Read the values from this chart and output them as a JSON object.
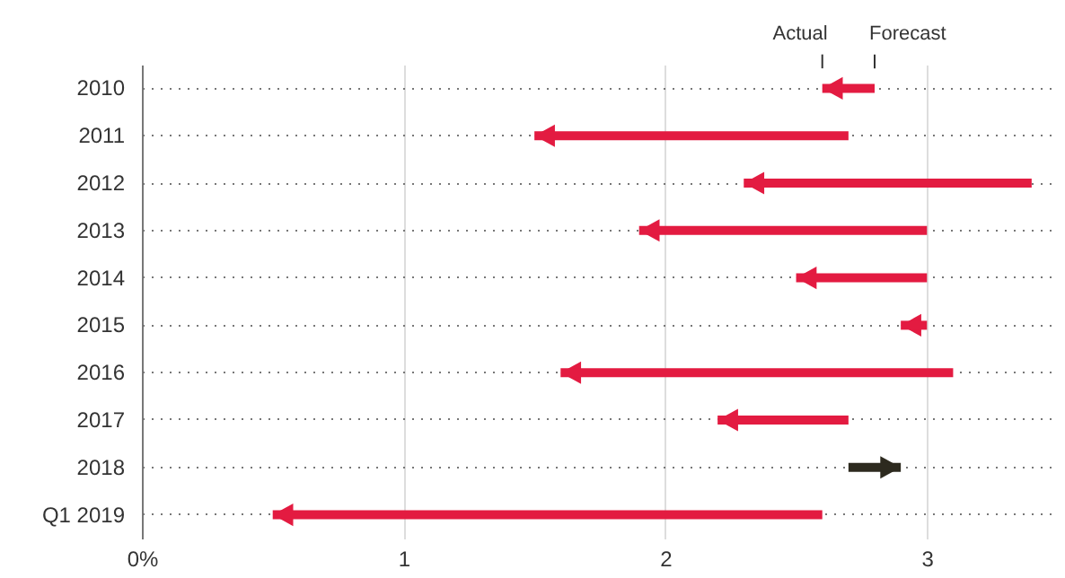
{
  "chart_data": {
    "type": "bar",
    "orientation": "horizontal",
    "categories": [
      "2010",
      "2011",
      "2012",
      "2013",
      "2014",
      "2015",
      "2016",
      "2017",
      "2018",
      "Q1 2019"
    ],
    "base": [
      2.8,
      2.7,
      3.4,
      3.0,
      3.0,
      3.0,
      3.1,
      2.7,
      2.7,
      2.6
    ],
    "values": [
      -0.2,
      -1.2,
      -1.1,
      -1.1,
      -0.5,
      -0.1,
      -1.5,
      -0.5,
      0.2,
      -2.1
    ],
    "colors": [
      "#e31b41",
      "#e31b41",
      "#e31b41",
      "#e31b41",
      "#e31b41",
      "#e31b41",
      "#e31b41",
      "#e31b41",
      "#2d2a1f",
      "#e31b41"
    ],
    "xlim": [
      0,
      3.5
    ],
    "xticks": [
      {
        "value": 0,
        "label": "0%"
      },
      1,
      2,
      3
    ],
    "grid": true,
    "annotations": [
      {
        "text": "Actual",
        "x": 2.6,
        "y": "2010"
      },
      {
        "text": "Forecast",
        "x": 2.8,
        "y": "2010"
      }
    ]
  }
}
